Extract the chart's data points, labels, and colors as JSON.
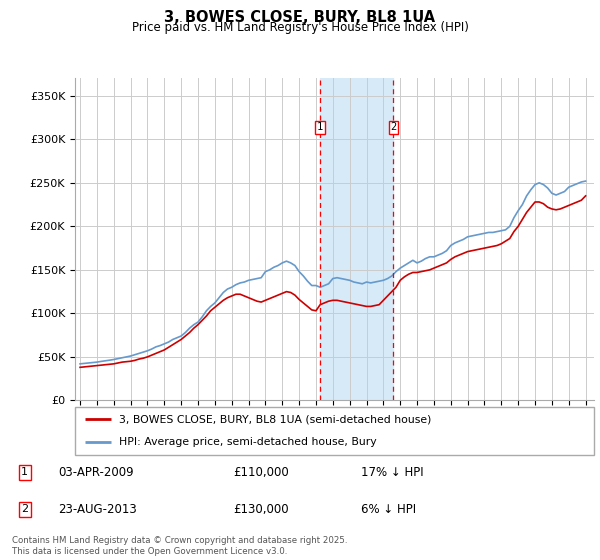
{
  "title": "3, BOWES CLOSE, BURY, BL8 1UA",
  "subtitle": "Price paid vs. HM Land Registry's House Price Index (HPI)",
  "ylim": [
    0,
    370000
  ],
  "yticks": [
    0,
    50000,
    100000,
    150000,
    200000,
    250000,
    300000,
    350000
  ],
  "ytick_labels": [
    "£0",
    "£50K",
    "£100K",
    "£150K",
    "£200K",
    "£250K",
    "£300K",
    "£350K"
  ],
  "sale1_x": 2009.25,
  "sale2_x": 2013.6,
  "legend_entry1": "3, BOWES CLOSE, BURY, BL8 1UA (semi-detached house)",
  "legend_entry2": "HPI: Average price, semi-detached house, Bury",
  "footnote": "Contains HM Land Registry data © Crown copyright and database right 2025.\nThis data is licensed under the Open Government Licence v3.0.",
  "line_color_red": "#cc0000",
  "line_color_blue": "#6699cc",
  "shade_color": "#d6eaf8",
  "grid_color": "#cccccc",
  "hpi_x": [
    1995.0,
    1995.25,
    1995.5,
    1995.75,
    1996.0,
    1996.25,
    1996.5,
    1996.75,
    1997.0,
    1997.25,
    1997.5,
    1997.75,
    1998.0,
    1998.25,
    1998.5,
    1998.75,
    1999.0,
    1999.25,
    1999.5,
    1999.75,
    2000.0,
    2000.25,
    2000.5,
    2000.75,
    2001.0,
    2001.25,
    2001.5,
    2001.75,
    2002.0,
    2002.25,
    2002.5,
    2002.75,
    2003.0,
    2003.25,
    2003.5,
    2003.75,
    2004.0,
    2004.25,
    2004.5,
    2004.75,
    2005.0,
    2005.25,
    2005.5,
    2005.75,
    2006.0,
    2006.25,
    2006.5,
    2006.75,
    2007.0,
    2007.25,
    2007.5,
    2007.75,
    2008.0,
    2008.25,
    2008.5,
    2008.75,
    2009.0,
    2009.25,
    2009.5,
    2009.75,
    2010.0,
    2010.25,
    2010.5,
    2010.75,
    2011.0,
    2011.25,
    2011.5,
    2011.75,
    2012.0,
    2012.25,
    2012.5,
    2012.75,
    2013.0,
    2013.25,
    2013.5,
    2013.75,
    2014.0,
    2014.25,
    2014.5,
    2014.75,
    2015.0,
    2015.25,
    2015.5,
    2015.75,
    2016.0,
    2016.25,
    2016.5,
    2016.75,
    2017.0,
    2017.25,
    2017.5,
    2017.75,
    2018.0,
    2018.25,
    2018.5,
    2018.75,
    2019.0,
    2019.25,
    2019.5,
    2019.75,
    2020.0,
    2020.25,
    2020.5,
    2020.75,
    2021.0,
    2021.25,
    2021.5,
    2021.75,
    2022.0,
    2022.25,
    2022.5,
    2022.75,
    2023.0,
    2023.25,
    2023.5,
    2023.75,
    2024.0,
    2024.25,
    2024.5,
    2024.75,
    2025.0
  ],
  "hpi_y": [
    42000,
    42500,
    43000,
    43500,
    44000,
    44800,
    45500,
    46200,
    47000,
    48000,
    49000,
    50000,
    51000,
    52500,
    54000,
    55500,
    57000,
    59000,
    61500,
    63000,
    65000,
    67000,
    70000,
    72000,
    74000,
    78000,
    83000,
    87000,
    90000,
    96000,
    103000,
    108000,
    112000,
    118000,
    124000,
    128000,
    130000,
    133000,
    135000,
    136000,
    138000,
    139000,
    140000,
    141000,
    148000,
    150000,
    153000,
    155000,
    158000,
    160000,
    158000,
    155000,
    148000,
    143000,
    137000,
    132000,
    132000,
    130000,
    132000,
    134000,
    140000,
    141000,
    140000,
    139000,
    138000,
    136000,
    135000,
    134000,
    136000,
    135000,
    136000,
    137000,
    138000,
    140000,
    143000,
    148000,
    152000,
    155000,
    158000,
    161000,
    158000,
    160000,
    163000,
    165000,
    165000,
    167000,
    169000,
    172000,
    178000,
    181000,
    183000,
    185000,
    188000,
    189000,
    190000,
    191000,
    192000,
    193000,
    193000,
    194000,
    195000,
    196000,
    200000,
    210000,
    218000,
    225000,
    235000,
    242000,
    248000,
    250000,
    248000,
    244000,
    238000,
    236000,
    238000,
    240000,
    245000,
    247000,
    249000,
    251000,
    252000
  ],
  "red_x": [
    1995.0,
    1995.25,
    1995.5,
    1995.75,
    1996.0,
    1996.25,
    1996.5,
    1996.75,
    1997.0,
    1997.25,
    1997.5,
    1997.75,
    1998.0,
    1998.25,
    1998.5,
    1998.75,
    1999.0,
    1999.25,
    1999.5,
    1999.75,
    2000.0,
    2000.25,
    2000.5,
    2000.75,
    2001.0,
    2001.25,
    2001.5,
    2001.75,
    2002.0,
    2002.25,
    2002.5,
    2002.75,
    2003.0,
    2003.25,
    2003.5,
    2003.75,
    2004.0,
    2004.25,
    2004.5,
    2004.75,
    2005.0,
    2005.25,
    2005.5,
    2005.75,
    2006.0,
    2006.25,
    2006.5,
    2006.75,
    2007.0,
    2007.25,
    2007.5,
    2007.75,
    2008.0,
    2008.25,
    2008.5,
    2008.75,
    2009.0,
    2009.25,
    2009.5,
    2009.75,
    2010.0,
    2010.25,
    2010.5,
    2010.75,
    2011.0,
    2011.25,
    2011.5,
    2011.75,
    2012.0,
    2012.25,
    2012.5,
    2012.75,
    2013.0,
    2013.25,
    2013.5,
    2013.75,
    2014.0,
    2014.25,
    2014.5,
    2014.75,
    2015.0,
    2015.25,
    2015.5,
    2015.75,
    2016.0,
    2016.25,
    2016.5,
    2016.75,
    2017.0,
    2017.25,
    2017.5,
    2017.75,
    2018.0,
    2018.25,
    2018.5,
    2018.75,
    2019.0,
    2019.25,
    2019.5,
    2019.75,
    2020.0,
    2020.25,
    2020.5,
    2020.75,
    2021.0,
    2021.25,
    2021.5,
    2021.75,
    2022.0,
    2022.25,
    2022.5,
    2022.75,
    2023.0,
    2023.25,
    2023.5,
    2023.75,
    2024.0,
    2024.25,
    2024.5,
    2024.75,
    2025.0
  ],
  "red_y": [
    38000,
    38500,
    39000,
    39500,
    40000,
    40500,
    41000,
    41500,
    42000,
    43000,
    44000,
    44500,
    45000,
    46000,
    47500,
    48500,
    50000,
    52000,
    54000,
    56000,
    58000,
    61000,
    64000,
    67000,
    70000,
    74000,
    78000,
    83000,
    87000,
    92000,
    97000,
    103000,
    107000,
    111000,
    115000,
    118000,
    120000,
    122000,
    122000,
    120000,
    118000,
    116000,
    114000,
    113000,
    115000,
    117000,
    119000,
    121000,
    123000,
    125000,
    124000,
    121000,
    116000,
    112000,
    108000,
    104000,
    103000,
    110000,
    112000,
    114000,
    115000,
    115000,
    114000,
    113000,
    112000,
    111000,
    110000,
    109000,
    108000,
    108000,
    109000,
    110000,
    115000,
    120000,
    125000,
    130000,
    138000,
    142000,
    145000,
    147000,
    147000,
    148000,
    149000,
    150000,
    152000,
    154000,
    156000,
    158000,
    162000,
    165000,
    167000,
    169000,
    171000,
    172000,
    173000,
    174000,
    175000,
    176000,
    177000,
    178000,
    180000,
    183000,
    186000,
    194000,
    200000,
    208000,
    216000,
    222000,
    228000,
    228000,
    226000,
    222000,
    220000,
    219000,
    220000,
    222000,
    224000,
    226000,
    228000,
    230000,
    235000
  ]
}
